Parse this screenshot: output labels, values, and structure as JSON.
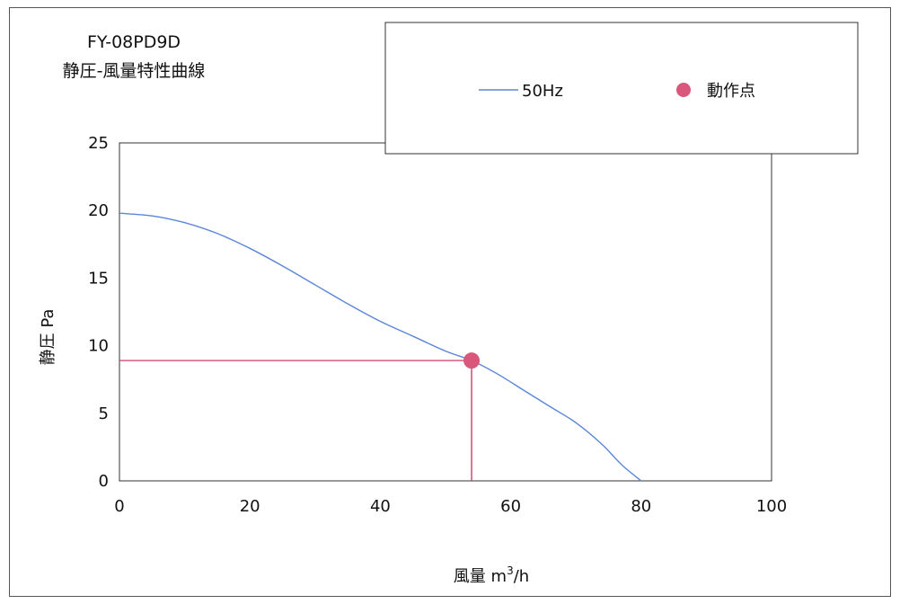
{
  "chart_data": {
    "type": "line",
    "title_lines": [
      "FY-08PD9D",
      "静圧-風量特性曲線"
    ],
    "xlabel_main": "風量 m",
    "xlabel_sup": "3",
    "xlabel_tail": "/h",
    "ylabel": "静圧 Pa",
    "xlim": [
      0,
      100
    ],
    "ylim": [
      0,
      25
    ],
    "xticks": [
      "0",
      "20",
      "40",
      "60",
      "80",
      "100"
    ],
    "yticks": [
      "0",
      "5",
      "10",
      "15",
      "20",
      "25"
    ],
    "grid": false,
    "legend_placement": "top-right",
    "series": [
      {
        "name": "50Hz",
        "color": "#5b86d8",
        "x": [
          0,
          5,
          10,
          15,
          20,
          25,
          30,
          35,
          40,
          45,
          50,
          54,
          58,
          62,
          66,
          70,
          74,
          77,
          80
        ],
        "y": [
          19.8,
          19.6,
          19.1,
          18.3,
          17.2,
          15.9,
          14.5,
          13.1,
          11.8,
          10.7,
          9.6,
          8.9,
          7.9,
          6.7,
          5.5,
          4.3,
          2.7,
          1.2,
          0
        ]
      }
    ],
    "operating_point": {
      "name": "動作点",
      "x": 54,
      "y": 8.9,
      "color": "#d9577a",
      "guide_color": "#d23c6a"
    }
  }
}
